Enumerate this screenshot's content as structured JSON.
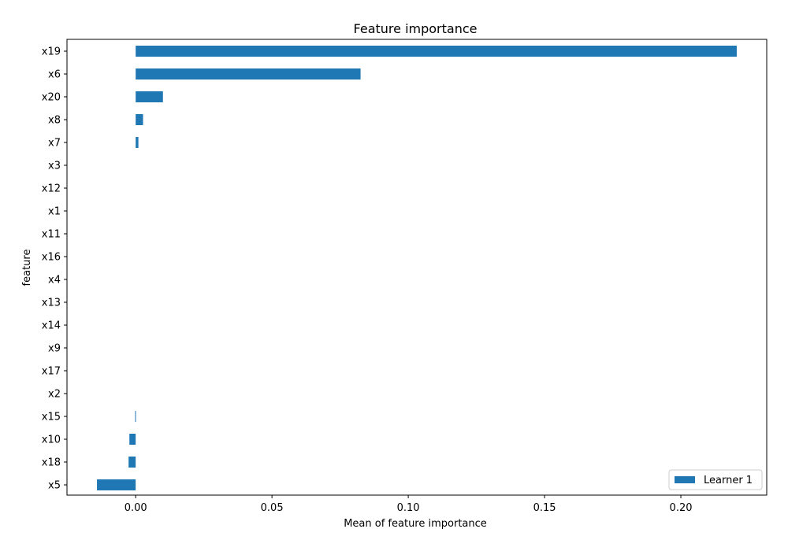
{
  "chart_data": {
    "type": "bar",
    "orientation": "horizontal",
    "title": "Feature importance",
    "xlabel": "Mean of feature importance",
    "ylabel": "feature",
    "categories": [
      "x19",
      "x6",
      "x20",
      "x8",
      "x7",
      "x3",
      "x12",
      "x1",
      "x11",
      "x16",
      "x4",
      "x13",
      "x14",
      "x9",
      "x17",
      "x2",
      "x15",
      "x10",
      "x18",
      "x5"
    ],
    "series": [
      {
        "name": "Learner 1",
        "color": "#1f77b4",
        "values": [
          0.2205,
          0.0825,
          0.01,
          0.0027,
          0.001,
          0.0,
          0.0,
          0.0,
          0.0,
          0.0,
          0.0,
          0.0,
          0.0,
          0.0,
          0.0,
          0.0,
          -0.0002,
          -0.0023,
          -0.0026,
          -0.0142
        ]
      }
    ],
    "xlim": [
      -0.0252,
      0.2315
    ],
    "xticks": [
      0.0,
      0.05,
      0.1,
      0.15,
      0.2
    ],
    "xtick_labels": [
      "0.00",
      "0.05",
      "0.10",
      "0.15",
      "0.20"
    ],
    "grid": false,
    "legend": {
      "position": "lower right",
      "entries": [
        "Learner 1"
      ]
    }
  }
}
